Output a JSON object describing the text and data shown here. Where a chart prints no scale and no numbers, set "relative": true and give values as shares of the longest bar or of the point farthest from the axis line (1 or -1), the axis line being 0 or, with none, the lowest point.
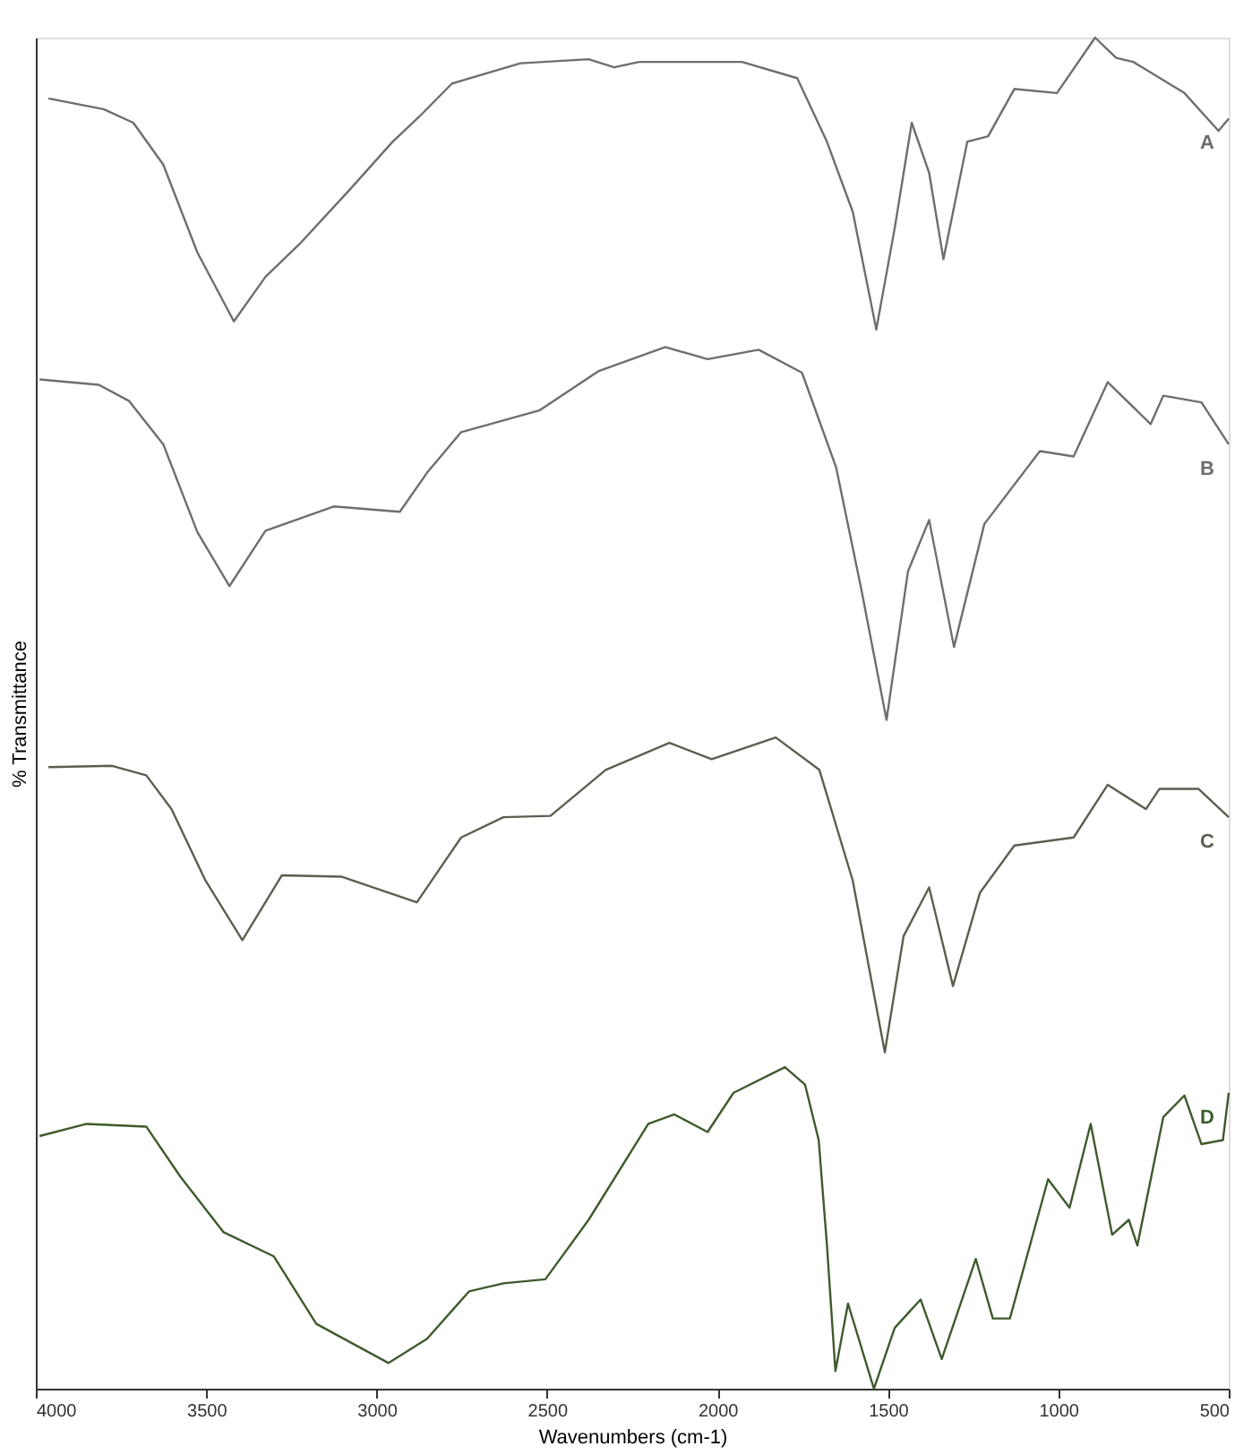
{
  "chart_data": {
    "type": "line",
    "relative": true,
    "xlabel": "Wavenumbers (cm-1)",
    "ylabel": "% Transmittance",
    "xlim": [
      4000,
      500
    ],
    "xticks": [
      4000,
      3500,
      3000,
      2500,
      2000,
      1500,
      1000,
      500
    ],
    "tick_labels": "x",
    "grid": false,
    "legend": false,
    "marker": "none",
    "line_style": "solid",
    "series": [
      {
        "name": "A",
        "color": "#6e6e6e",
        "x": [
          3963,
          3801,
          3714,
          3626,
          3526,
          3419,
          3326,
          3227,
          3077,
          2953,
          2877,
          2779,
          2578,
          2378,
          2303,
          2230,
          1928,
          1766,
          1679,
          1603,
          1534,
          1480,
          1430,
          1379,
          1337,
          1267,
          1206,
          1129,
          1004,
          892,
          830,
          780,
          630,
          530,
          500
        ],
        "values": [
          0.955,
          0.947,
          0.937,
          0.906,
          0.841,
          0.79,
          0.823,
          0.847,
          0.888,
          0.923,
          0.941,
          0.966,
          0.981,
          0.984,
          0.978,
          0.982,
          0.982,
          0.97,
          0.923,
          0.871,
          0.784,
          0.859,
          0.937,
          0.9,
          0.836,
          0.923,
          0.927,
          0.962,
          0.959,
          1,
          0.985,
          0.982,
          0.959,
          0.931,
          0.94
        ]
      },
      {
        "name": "B",
        "color": "#6e6e6e",
        "x": [
          3989,
          3815,
          3726,
          3626,
          3526,
          3432,
          3326,
          3126,
          2932,
          2852,
          2752,
          2523,
          2350,
          2153,
          2029,
          1879,
          1752,
          1652,
          1579,
          1504,
          1441,
          1379,
          1306,
          1217,
          1054,
          955,
          855,
          729,
          692,
          580,
          500
        ],
        "values": [
          0.747,
          0.743,
          0.731,
          0.699,
          0.634,
          0.594,
          0.635,
          0.653,
          0.649,
          0.678,
          0.708,
          0.724,
          0.753,
          0.771,
          0.762,
          0.769,
          0.752,
          0.682,
          0.593,
          0.495,
          0.605,
          0.643,
          0.549,
          0.64,
          0.694,
          0.69,
          0.745,
          0.714,
          0.735,
          0.73,
          0.699
        ]
      },
      {
        "name": "C",
        "color": "#5a5f50",
        "x": [
          3963,
          3776,
          3676,
          3602,
          3502,
          3394,
          3278,
          3104,
          2882,
          2752,
          2628,
          2490,
          2328,
          2141,
          2017,
          1829,
          1701,
          1603,
          1509,
          1454,
          1379,
          1309,
          1230,
          1129,
          955,
          855,
          743,
          703,
          589,
          500
        ],
        "values": [
          0.46,
          0.461,
          0.454,
          0.429,
          0.376,
          0.332,
          0.38,
          0.379,
          0.36,
          0.408,
          0.423,
          0.424,
          0.458,
          0.478,
          0.466,
          0.482,
          0.458,
          0.376,
          0.249,
          0.335,
          0.371,
          0.298,
          0.367,
          0.402,
          0.408,
          0.447,
          0.429,
          0.444,
          0.444,
          0.423
        ]
      },
      {
        "name": "D",
        "color": "#3f5a2c",
        "x": [
          3989,
          3851,
          3676,
          3576,
          3450,
          3302,
          3177,
          2965,
          2852,
          2729,
          2628,
          2505,
          2378,
          2203,
          2127,
          2029,
          1953,
          1802,
          1743,
          1703,
          1679,
          1654,
          1617,
          1541,
          1480,
          1404,
          1342,
          1242,
          1192,
          1142,
          1030,
          967,
          905,
          842,
          793,
          768,
          692,
          630,
          580,
          517,
          500
        ],
        "values": [
          0.187,
          0.196,
          0.194,
          0.157,
          0.116,
          0.098,
          0.048,
          0.019,
          0.037,
          0.072,
          0.078,
          0.081,
          0.125,
          0.196,
          0.203,
          0.19,
          0.219,
          0.238,
          0.225,
          0.184,
          0.107,
          0.013,
          0.063,
          0.0,
          0.045,
          0.066,
          0.022,
          0.096,
          0.052,
          0.052,
          0.155,
          0.134,
          0.196,
          0.114,
          0.125,
          0.106,
          0.201,
          0.217,
          0.181,
          0.184,
          0.219
        ]
      }
    ]
  }
}
